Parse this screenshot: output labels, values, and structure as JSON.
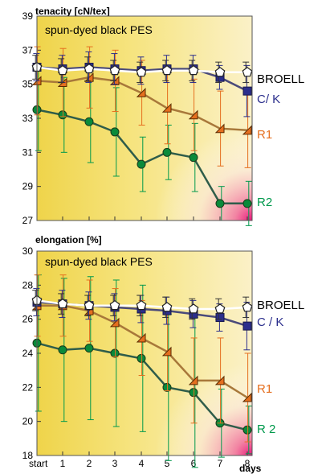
{
  "chart_data": [
    {
      "type": "line",
      "title": "spun-dyed black PES",
      "ylabel": "tenacity [cN/tex]",
      "ylim": [
        27,
        39
      ],
      "yticks": [
        27,
        29,
        31,
        33,
        35,
        37,
        39
      ],
      "categories": [
        "start",
        "1",
        "2",
        "3",
        "4",
        "5",
        "6",
        "7",
        "8"
      ],
      "grid": false,
      "series": [
        {
          "name": "BROELL",
          "color": "#333333",
          "marker": "pentagon",
          "fill": "#ffffff",
          "values": [
            36.0,
            35.8,
            35.9,
            35.8,
            35.7,
            35.8,
            35.8,
            35.7,
            35.7
          ],
          "errors": [
            0.7,
            0.7,
            0.7,
            0.6,
            0.6,
            0.6,
            0.6,
            0.6,
            0.6
          ]
        },
        {
          "name": "C/ K",
          "color": "#2b2e8c",
          "marker": "square",
          "fill": "#2b2e8c",
          "values": [
            36.0,
            35.9,
            36.0,
            35.9,
            35.8,
            35.9,
            35.9,
            35.4,
            34.6
          ],
          "errors": [
            0.8,
            0.8,
            0.9,
            0.9,
            0.8,
            0.8,
            0.8,
            0.7,
            1.5
          ]
        },
        {
          "name": "R1",
          "color": "#e56f1f",
          "marker": "triangle",
          "fill": "#e56f1f",
          "values": [
            35.2,
            35.1,
            35.4,
            35.2,
            34.5,
            33.6,
            33.2,
            32.4,
            32.3
          ],
          "errors": [
            2.0,
            2.0,
            1.8,
            1.8,
            1.9,
            2.1,
            2.1,
            2.2,
            2.2
          ]
        },
        {
          "name": "R2",
          "color": "#00994c",
          "marker": "circle",
          "fill": "#0a8a3a",
          "values": [
            33.5,
            33.2,
            32.8,
            32.2,
            30.3,
            31.0,
            30.7,
            28.0,
            28.0
          ],
          "errors": [
            2.4,
            2.2,
            2.4,
            2.6,
            1.6,
            1.6,
            2.0,
            1.0,
            1.3
          ]
        }
      ]
    },
    {
      "type": "line",
      "title": "spun-dyed black PES",
      "ylabel": "elongation [%]",
      "xlabel": "days",
      "ylim": [
        18,
        30
      ],
      "yticks": [
        18,
        20,
        22,
        24,
        26,
        28,
        30
      ],
      "categories": [
        "start",
        "1",
        "2",
        "3",
        "4",
        "5",
        "6",
        "7",
        "8"
      ],
      "grid": false,
      "series": [
        {
          "name": "BROELL",
          "color": "#333333",
          "marker": "pentagon",
          "fill": "#ffffff",
          "values": [
            27.1,
            26.9,
            26.8,
            26.8,
            26.8,
            26.7,
            26.6,
            26.6,
            26.7
          ],
          "errors": [
            0.6,
            0.6,
            0.6,
            0.6,
            0.6,
            0.6,
            0.6,
            0.6,
            0.6
          ]
        },
        {
          "name": "C / K",
          "color": "#2b2e8c",
          "marker": "square",
          "fill": "#2b2e8c",
          "values": [
            27.0,
            26.9,
            26.8,
            26.7,
            26.6,
            26.5,
            26.3,
            26.1,
            25.6
          ],
          "errors": [
            0.8,
            0.8,
            0.8,
            0.8,
            0.8,
            0.8,
            0.8,
            0.8,
            1.4
          ]
        },
        {
          "name": "R1",
          "color": "#e56f1f",
          "marker": "triangle",
          "fill": "#e56f1f",
          "values": [
            26.8,
            26.8,
            26.5,
            25.8,
            24.9,
            24.1,
            22.4,
            22.4,
            21.4
          ],
          "errors": [
            1.8,
            1.8,
            1.8,
            2.0,
            2.2,
            2.3,
            2.5,
            2.5,
            2.6
          ]
        },
        {
          "name": "R 2",
          "color": "#00994c",
          "marker": "circle",
          "fill": "#0a8a3a",
          "values": [
            24.6,
            24.2,
            24.3,
            24.0,
            23.7,
            22.0,
            21.7,
            19.9,
            19.5
          ],
          "errors": [
            4.0,
            4.2,
            4.2,
            4.3,
            4.3,
            4.3,
            4.4,
            2.0,
            1.4
          ]
        }
      ]
    }
  ]
}
